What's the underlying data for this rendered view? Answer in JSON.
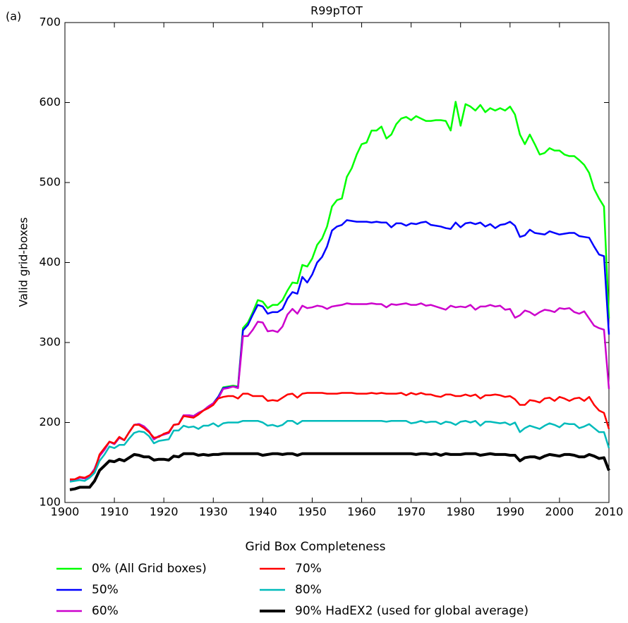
{
  "chart_data": {
    "type": "line",
    "panel_label": "(a)",
    "title": "R99pTOT",
    "y_label": "Valid grid-boxes",
    "legend_title": "Grid Box Completeness",
    "legend": "below",
    "grid": false,
    "xlim": [
      1900,
      2010
    ],
    "xticks": [
      1900,
      1910,
      1920,
      1930,
      1940,
      1950,
      1960,
      1970,
      1980,
      1990,
      2000,
      2010
    ],
    "ylim": [
      100,
      700
    ],
    "yticks": [
      100,
      200,
      300,
      400,
      500,
      600,
      700
    ],
    "x": [
      1901,
      1902,
      1903,
      1904,
      1905,
      1906,
      1907,
      1908,
      1909,
      1910,
      1911,
      1912,
      1913,
      1914,
      1915,
      1916,
      1917,
      1918,
      1919,
      1920,
      1921,
      1922,
      1923,
      1924,
      1925,
      1926,
      1927,
      1928,
      1929,
      1930,
      1931,
      1932,
      1933,
      1934,
      1935,
      1936,
      1937,
      1938,
      1939,
      1940,
      1941,
      1942,
      1943,
      1944,
      1945,
      1946,
      1947,
      1948,
      1949,
      1950,
      1951,
      1952,
      1953,
      1954,
      1955,
      1956,
      1957,
      1958,
      1959,
      1960,
      1961,
      1962,
      1963,
      1964,
      1965,
      1966,
      1967,
      1968,
      1969,
      1970,
      1971,
      1972,
      1973,
      1974,
      1975,
      1976,
      1977,
      1978,
      1979,
      1980,
      1981,
      1982,
      1983,
      1984,
      1985,
      1986,
      1987,
      1988,
      1989,
      1990,
      1991,
      1992,
      1993,
      1994,
      1995,
      1996,
      1997,
      1998,
      1999,
      2000,
      2001,
      2002,
      2003,
      2004,
      2005,
      2006,
      2007,
      2008,
      2009,
      2010
    ],
    "series": [
      {
        "name": "0% (All Grid boxes)",
        "color": "#00ff00",
        "width": 2.5,
        "values": [
          128,
          128,
          131,
          130,
          133,
          142,
          158,
          166,
          176,
          173,
          181,
          178,
          188,
          197,
          198,
          195,
          189,
          179,
          183,
          185,
          187,
          197,
          198,
          209,
          209,
          208,
          212,
          215,
          220,
          224,
          232,
          244,
          245,
          246,
          245,
          318,
          325,
          338,
          353,
          351,
          343,
          347,
          347,
          353,
          365,
          375,
          374,
          397,
          395,
          405,
          422,
          430,
          445,
          470,
          478,
          480,
          507,
          518,
          535,
          548,
          550,
          565,
          565,
          570,
          555,
          560,
          573,
          580,
          582,
          578,
          583,
          580,
          577,
          577,
          578,
          578,
          577,
          565,
          601,
          571,
          598,
          595,
          590,
          597,
          588,
          593,
          590,
          593,
          590,
          595,
          585,
          560,
          548,
          560,
          548,
          535,
          537,
          543,
          540,
          540,
          535,
          533,
          533,
          528,
          522,
          512,
          492,
          480,
          470,
          330
        ]
      },
      {
        "name": "50%",
        "color": "#0000ff",
        "width": 2.5,
        "values": [
          128,
          128,
          131,
          130,
          133,
          142,
          158,
          166,
          176,
          173,
          181,
          178,
          188,
          197,
          198,
          195,
          189,
          179,
          183,
          185,
          187,
          197,
          198,
          209,
          209,
          208,
          212,
          215,
          220,
          224,
          232,
          243,
          244,
          245,
          244,
          315,
          322,
          335,
          347,
          345,
          336,
          338,
          338,
          342,
          355,
          363,
          361,
          382,
          375,
          385,
          400,
          407,
          420,
          440,
          445,
          447,
          453,
          452,
          451,
          451,
          451,
          450,
          451,
          450,
          450,
          444,
          449,
          449,
          446,
          449,
          448,
          450,
          451,
          447,
          446,
          445,
          443,
          442,
          450,
          444,
          449,
          450,
          448,
          450,
          445,
          448,
          443,
          447,
          448,
          451,
          446,
          432,
          434,
          441,
          437,
          436,
          435,
          439,
          437,
          435,
          436,
          437,
          437,
          433,
          432,
          431,
          420,
          410,
          408,
          310
        ]
      },
      {
        "name": "60%",
        "color": "#cc00cc",
        "width": 2.5,
        "values": [
          128,
          128,
          131,
          130,
          133,
          142,
          158,
          166,
          176,
          173,
          181,
          178,
          188,
          197,
          198,
          195,
          189,
          179,
          183,
          185,
          187,
          197,
          198,
          209,
          209,
          208,
          212,
          215,
          220,
          224,
          230,
          242,
          243,
          245,
          243,
          308,
          308,
          316,
          326,
          325,
          314,
          315,
          313,
          320,
          335,
          342,
          336,
          346,
          343,
          344,
          346,
          345,
          342,
          345,
          346,
          347,
          349,
          348,
          348,
          348,
          348,
          349,
          348,
          348,
          344,
          348,
          347,
          348,
          349,
          347,
          347,
          349,
          346,
          347,
          345,
          343,
          341,
          346,
          344,
          345,
          344,
          347,
          341,
          345,
          345,
          347,
          345,
          346,
          341,
          342,
          331,
          334,
          340,
          338,
          334,
          338,
          341,
          340,
          338,
          343,
          342,
          343,
          338,
          336,
          339,
          330,
          321,
          318,
          316,
          242
        ]
      },
      {
        "name": "70%",
        "color": "#ff0000",
        "width": 2.5,
        "values": [
          129,
          129,
          132,
          131,
          134,
          140,
          160,
          168,
          176,
          174,
          182,
          178,
          188,
          197,
          197,
          193,
          188,
          181,
          182,
          186,
          188,
          197,
          198,
          208,
          207,
          206,
          210,
          215,
          218,
          222,
          230,
          232,
          233,
          233,
          230,
          236,
          236,
          233,
          233,
          233,
          227,
          228,
          227,
          231,
          235,
          236,
          231,
          236,
          237,
          237,
          237,
          237,
          236,
          236,
          236,
          237,
          237,
          237,
          236,
          236,
          236,
          237,
          236,
          237,
          236,
          236,
          236,
          237,
          234,
          237,
          235,
          237,
          235,
          235,
          233,
          232,
          235,
          235,
          233,
          233,
          235,
          233,
          235,
          230,
          234,
          234,
          235,
          234,
          232,
          233,
          229,
          222,
          222,
          228,
          227,
          225,
          230,
          231,
          227,
          232,
          230,
          227,
          230,
          231,
          227,
          232,
          222,
          215,
          212,
          192
        ]
      },
      {
        "name": "80%",
        "color": "#00bbbb",
        "width": 2.5,
        "values": [
          126,
          127,
          128,
          127,
          131,
          137,
          152,
          160,
          170,
          168,
          172,
          172,
          180,
          187,
          189,
          188,
          183,
          174,
          177,
          178,
          179,
          190,
          190,
          196,
          194,
          195,
          192,
          196,
          196,
          199,
          195,
          199,
          200,
          200,
          200,
          202,
          202,
          202,
          202,
          200,
          196,
          197,
          195,
          197,
          202,
          202,
          198,
          202,
          202,
          202,
          202,
          202,
          202,
          202,
          202,
          202,
          202,
          202,
          202,
          202,
          202,
          202,
          202,
          202,
          201,
          202,
          202,
          202,
          202,
          199,
          200,
          202,
          200,
          201,
          201,
          198,
          201,
          200,
          197,
          201,
          202,
          200,
          202,
          196,
          201,
          201,
          200,
          199,
          200,
          197,
          200,
          188,
          193,
          196,
          194,
          192,
          196,
          199,
          197,
          194,
          199,
          198,
          198,
          193,
          195,
          198,
          193,
          188,
          188,
          168
        ]
      },
      {
        "name": "90% HadEX2 (used for global average)",
        "color": "#000000",
        "width": 4,
        "values": [
          116,
          117,
          119,
          119,
          119,
          127,
          140,
          146,
          152,
          151,
          154,
          152,
          156,
          160,
          159,
          157,
          157,
          153,
          154,
          154,
          153,
          158,
          157,
          161,
          161,
          161,
          159,
          160,
          159,
          160,
          160,
          161,
          161,
          161,
          161,
          161,
          161,
          161,
          161,
          159,
          160,
          161,
          161,
          160,
          161,
          161,
          159,
          161,
          161,
          161,
          161,
          161,
          161,
          161,
          161,
          161,
          161,
          161,
          161,
          161,
          161,
          161,
          161,
          161,
          161,
          161,
          161,
          161,
          161,
          161,
          160,
          161,
          161,
          160,
          161,
          159,
          161,
          160,
          160,
          160,
          161,
          161,
          161,
          159,
          160,
          161,
          160,
          160,
          160,
          159,
          159,
          152,
          156,
          157,
          157,
          155,
          158,
          160,
          159,
          158,
          160,
          160,
          159,
          157,
          157,
          160,
          158,
          155,
          156,
          140
        ]
      }
    ]
  }
}
